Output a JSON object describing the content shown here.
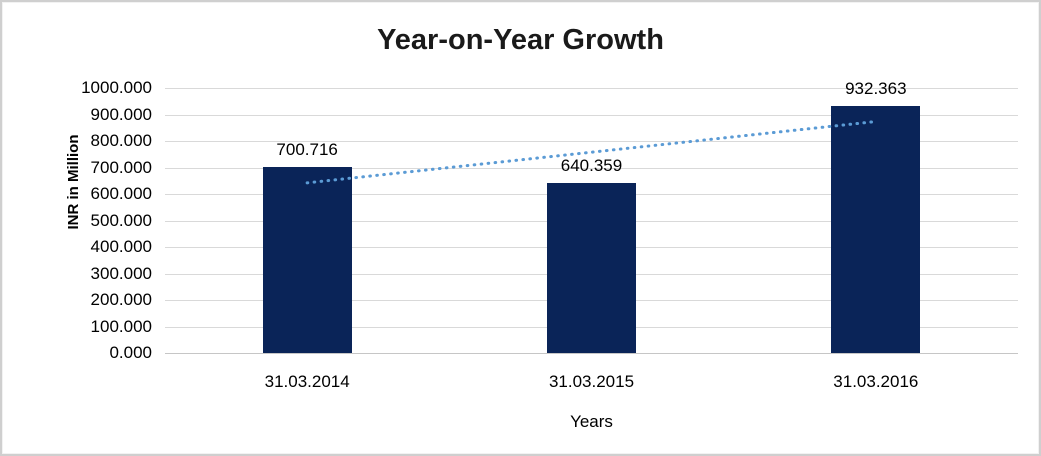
{
  "window": {
    "background_color": "#ffffff",
    "border_color": "#cfcfcf"
  },
  "chart_data": {
    "type": "bar",
    "title": "Year-on-Year Growth",
    "xlabel": "Years",
    "ylabel": "INR in Million",
    "categories": [
      "31.03.2014",
      "31.03.2015",
      "31.03.2016"
    ],
    "values": [
      700.716,
      640.359,
      932.363
    ],
    "data_labels": [
      "700.716",
      "640.359",
      "932.363"
    ],
    "ylim": [
      0,
      1000
    ],
    "ytick_step": 100,
    "ytick_labels": [
      "0.000",
      "100.000",
      "200.000",
      "300.000",
      "400.000",
      "500.000",
      "600.000",
      "700.000",
      "800.000",
      "900.000",
      "1000.000"
    ],
    "grid": true,
    "legend": false,
    "bar_color": "#0a2458",
    "gridline_color": "#d9d9d9",
    "baseline_color": "#c6c6c6",
    "text_color": "#000000",
    "title_color": "#1a1a1a",
    "trendline": {
      "type": "linear",
      "style": "dotted",
      "color": "#5b9bd5",
      "start_value": 642.0,
      "end_value": 873.6
    }
  }
}
